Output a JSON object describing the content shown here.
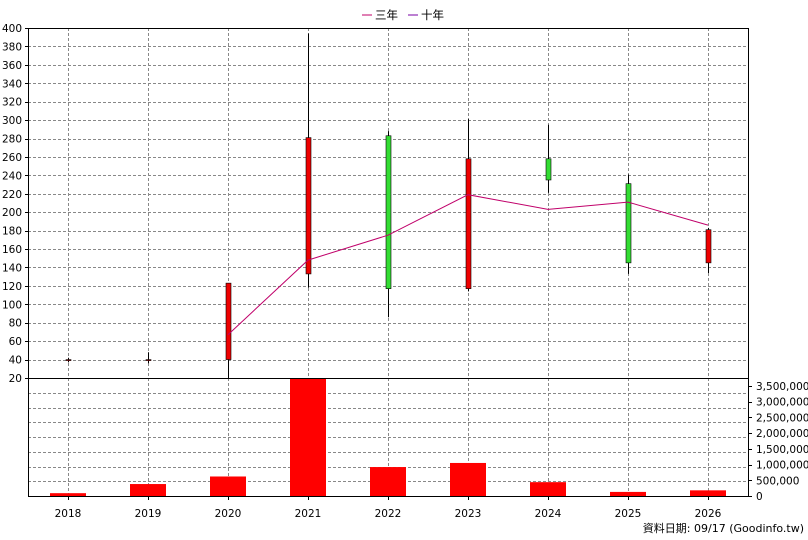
{
  "legend": [
    {
      "label": "三年",
      "color": "#c0006a"
    },
    {
      "label": "十年",
      "color": "#7a00a6"
    }
  ],
  "footer": "資料日期: 09/17  (Goodinfo.tw)",
  "colors": {
    "up": "#33dd33",
    "down": "#ee0000",
    "wick": "#000000",
    "volume": "#ff0000",
    "ma3": "#c0006a",
    "grid": "#888888"
  },
  "chart_data": {
    "type": "candlestick",
    "categories": [
      "2018",
      "2019",
      "2020",
      "2021",
      "2022",
      "2023",
      "2024",
      "2025",
      "2026"
    ],
    "price_axis": {
      "ylim": [
        20,
        400
      ],
      "ticks": [
        20,
        40,
        60,
        80,
        100,
        120,
        140,
        160,
        180,
        200,
        220,
        240,
        260,
        280,
        300,
        320,
        340,
        360,
        380,
        400
      ]
    },
    "candles": [
      {
        "year": "2018",
        "open": 39,
        "close": 40,
        "high": 42,
        "low": 37
      },
      {
        "year": "2019",
        "open": 39,
        "close": 40,
        "high": 48,
        "low": 36
      },
      {
        "year": "2020",
        "open": 40,
        "close": 123,
        "high": 123,
        "low": 19
      },
      {
        "year": "2021",
        "open": 133,
        "close": 281,
        "high": 394,
        "low": 118
      },
      {
        "year": "2022",
        "open": 283,
        "close": 117,
        "high": 288,
        "low": 86
      },
      {
        "year": "2023",
        "open": 117,
        "close": 258,
        "high": 301,
        "low": 114
      },
      {
        "year": "2024",
        "open": 258,
        "close": 235,
        "high": 295,
        "low": 221
      },
      {
        "year": "2025",
        "open": 231,
        "close": 145,
        "high": 241,
        "low": 133
      },
      {
        "year": "2026",
        "open": 145,
        "close": 181,
        "high": 183,
        "low": 134
      }
    ],
    "moving_averages": [
      {
        "name": "三年",
        "values": [
          null,
          null,
          67,
          148,
          175,
          219,
          203,
          211,
          186
        ]
      },
      {
        "name": "十年",
        "values": [
          null,
          null,
          null,
          null,
          null,
          null,
          null,
          null,
          null
        ]
      }
    ],
    "volume_axis": {
      "ylim": [
        0,
        3750000
      ],
      "ticks": [
        0,
        500000,
        1000000,
        1500000,
        2000000,
        2500000,
        3000000,
        3500000
      ],
      "tick_labels": [
        "0",
        "500,000",
        "1,000,000",
        "1,500,000",
        "2,000,000",
        "2,500,000",
        "3,000,000",
        "3,500,000"
      ]
    },
    "volume": [
      90000,
      380000,
      620000,
      3750000,
      920000,
      1050000,
      440000,
      130000,
      180000
    ],
    "grid": true,
    "legend_position": "top-center"
  }
}
